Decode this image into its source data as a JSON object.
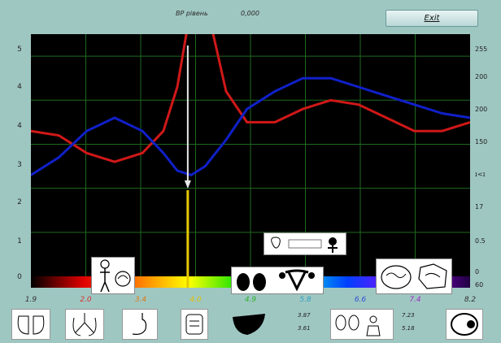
{
  "header": {
    "label_left": "ВР рівень",
    "value": "0,000",
    "exit_label": "Exit"
  },
  "y_left_ticks": [
    "5",
    "4",
    "4",
    "3",
    "2",
    "1",
    "0"
  ],
  "y_right_ticks": [
    "255",
    "200",
    "200",
    "150",
    "ɪ<ɪ",
    "17",
    "0.5",
    "0",
    "60"
  ],
  "x_ticks": [
    {
      "label": "1.9",
      "color": "#333333"
    },
    {
      "label": "2.0",
      "color": "#d03030"
    },
    {
      "label": "3.4",
      "color": "#e07a10"
    },
    {
      "label": "4.0",
      "color": "#e0c000"
    },
    {
      "label": "4.9",
      "color": "#30b030"
    },
    {
      "label": "5.8",
      "color": "#30a0c0"
    },
    {
      "label": "6.6",
      "color": "#3050d0"
    },
    {
      "label": "7.4",
      "color": "#a030c0"
    },
    {
      "label": "8.2",
      "color": "#333333"
    }
  ],
  "bottom_values": {
    "a1": "3.87",
    "a2": "3.61",
    "b1": "7.23",
    "b2": "5.18"
  },
  "chart_data": {
    "type": "line",
    "xlim": [
      1.9,
      8.2
    ],
    "ylim": [
      0,
      5.5
    ],
    "series": [
      {
        "color": "#d01818",
        "x": [
          1.9,
          2.3,
          2.7,
          3.1,
          3.5,
          3.8,
          4.0,
          4.15,
          4.3,
          4.5,
          4.7,
          5.0,
          5.4,
          5.8,
          6.2,
          6.6,
          7.0,
          7.4,
          7.8,
          8.2
        ],
        "y": [
          3.3,
          3.2,
          2.8,
          2.6,
          2.8,
          3.3,
          4.3,
          5.7,
          5.9,
          5.6,
          4.2,
          3.5,
          3.5,
          3.8,
          4.0,
          3.9,
          3.6,
          3.3,
          3.3,
          3.5
        ]
      },
      {
        "color": "#1020c8",
        "x": [
          1.9,
          2.3,
          2.7,
          3.1,
          3.5,
          3.8,
          4.0,
          4.2,
          4.4,
          4.7,
          5.0,
          5.4,
          5.8,
          6.2,
          6.6,
          7.0,
          7.4,
          7.8,
          8.2
        ],
        "y": [
          2.3,
          2.7,
          3.3,
          3.6,
          3.3,
          2.8,
          2.4,
          2.3,
          2.5,
          3.1,
          3.8,
          4.2,
          4.5,
          4.5,
          4.3,
          4.1,
          3.9,
          3.7,
          3.6
        ]
      }
    ],
    "marker_x": 4.15
  },
  "organ_cards": {
    "card1": "body-silhouette",
    "card2": "lungs-uterus",
    "card3": "brain-icons",
    "card4": "kidneys-label"
  }
}
